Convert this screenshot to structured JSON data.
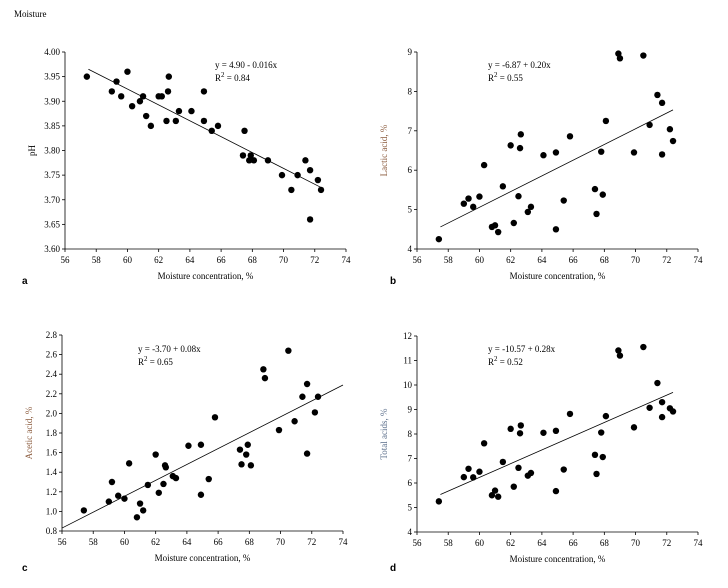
{
  "header": {
    "label": "Moisture"
  },
  "chart_data": [
    {
      "panel": "a",
      "type": "scatter",
      "xlabel": "Moisture concentration, %",
      "ylabel": "pH",
      "ylabel_color": "#000000",
      "xlim": [
        56,
        74
      ],
      "ylim": [
        3.6,
        4.0
      ],
      "xticks": [
        56,
        58,
        60,
        62,
        64,
        66,
        68,
        70,
        72,
        74
      ],
      "yticks": [
        "3.60",
        "3.65",
        "3.70",
        "3.75",
        "3.80",
        "3.85",
        "3.90",
        "3.95",
        "4.00"
      ],
      "equation": "y = 4.90 - 0.016x",
      "r2_prefix": "R",
      "r2_sup": "2",
      "r2_value": " = 0.84",
      "trendline": {
        "x": [
          57.5,
          72.4
        ],
        "y": [
          3.965,
          3.725
        ]
      },
      "points": [
        [
          57.4,
          3.95
        ],
        [
          59.0,
          3.92
        ],
        [
          59.3,
          3.94
        ],
        [
          59.6,
          3.91
        ],
        [
          60.0,
          3.96
        ],
        [
          60.3,
          3.89
        ],
        [
          60.8,
          3.9
        ],
        [
          61.0,
          3.91
        ],
        [
          61.2,
          3.87
        ],
        [
          61.5,
          3.85
        ],
        [
          62.0,
          3.91
        ],
        [
          62.2,
          3.91
        ],
        [
          62.5,
          3.86
        ],
        [
          62.6,
          3.92
        ],
        [
          62.65,
          3.95
        ],
        [
          63.1,
          3.86
        ],
        [
          63.3,
          3.88
        ],
        [
          64.1,
          3.88
        ],
        [
          64.9,
          3.86
        ],
        [
          64.9,
          3.92
        ],
        [
          65.4,
          3.84
        ],
        [
          65.8,
          3.85
        ],
        [
          67.4,
          3.79
        ],
        [
          67.5,
          3.84
        ],
        [
          67.8,
          3.78
        ],
        [
          67.9,
          3.79
        ],
        [
          68.1,
          3.78
        ],
        [
          69.0,
          3.78
        ],
        [
          69.9,
          3.75
        ],
        [
          70.5,
          3.72
        ],
        [
          70.9,
          3.75
        ],
        [
          71.4,
          3.78
        ],
        [
          71.7,
          3.76
        ],
        [
          71.7,
          3.66
        ],
        [
          72.2,
          3.74
        ],
        [
          72.4,
          3.72
        ]
      ]
    },
    {
      "panel": "b",
      "type": "scatter",
      "xlabel": "Moisture concentration, %",
      "ylabel": "Lactic acid, %",
      "ylabel_color": "#8a5a3c",
      "xlim": [
        56,
        74
      ],
      "ylim": [
        4,
        9
      ],
      "xticks": [
        56,
        58,
        60,
        62,
        64,
        66,
        68,
        70,
        72,
        74
      ],
      "yticks": [
        "4",
        "5",
        "6",
        "7",
        "8",
        "9"
      ],
      "equation": "y = -6.87 + 0.20x",
      "r2_prefix": "R",
      "r2_sup": "2",
      "r2_value": " = 0.55",
      "trendline": {
        "x": [
          57.5,
          72.4
        ],
        "y": [
          4.56,
          7.53
        ]
      },
      "points": [
        [
          57.4,
          4.25
        ],
        [
          59.0,
          5.15
        ],
        [
          59.3,
          5.28
        ],
        [
          59.6,
          5.07
        ],
        [
          60.0,
          5.33
        ],
        [
          60.3,
          6.13
        ],
        [
          60.8,
          4.56
        ],
        [
          61.0,
          4.6
        ],
        [
          61.2,
          4.43
        ],
        [
          61.5,
          5.59
        ],
        [
          62.0,
          6.63
        ],
        [
          62.2,
          4.66
        ],
        [
          62.5,
          5.34
        ],
        [
          62.6,
          6.56
        ],
        [
          62.65,
          6.91
        ],
        [
          63.1,
          4.94
        ],
        [
          63.3,
          5.07
        ],
        [
          64.1,
          6.38
        ],
        [
          64.9,
          6.45
        ],
        [
          64.9,
          4.5
        ],
        [
          65.4,
          5.23
        ],
        [
          65.8,
          6.86
        ],
        [
          67.4,
          5.52
        ],
        [
          67.5,
          4.89
        ],
        [
          67.8,
          6.47
        ],
        [
          67.9,
          5.38
        ],
        [
          68.1,
          7.25
        ],
        [
          68.9,
          8.96
        ],
        [
          69.0,
          8.84
        ],
        [
          69.9,
          6.45
        ],
        [
          70.5,
          8.91
        ],
        [
          70.9,
          7.15
        ],
        [
          71.4,
          7.91
        ],
        [
          71.7,
          7.71
        ],
        [
          71.7,
          6.4
        ],
        [
          72.2,
          7.04
        ],
        [
          72.4,
          6.74
        ]
      ]
    },
    {
      "panel": "c",
      "type": "scatter",
      "xlabel": "Moisture concentration, %",
      "ylabel": "Acetic acid, %",
      "ylabel_color": "#8a5a3c",
      "xlim": [
        56,
        74
      ],
      "ylim": [
        0.8,
        2.8
      ],
      "xticks": [
        56,
        58,
        60,
        62,
        64,
        66,
        68,
        70,
        72,
        74
      ],
      "yticks": [
        "0.8",
        "1.0",
        "1.2",
        "1.4",
        "1.6",
        "1.8",
        "2.0",
        "2.2",
        "2.4",
        "2.6",
        "2.8"
      ],
      "equation": "y = -3.70 + 0.08x",
      "r2_prefix": "R",
      "r2_sup": "2",
      "r2_value": " = 0.65",
      "trendline": {
        "x": [
          56,
          74
        ],
        "y": [
          0.83,
          2.29
        ]
      },
      "points": [
        [
          57.4,
          1.01
        ],
        [
          59.0,
          1.1
        ],
        [
          59.2,
          1.3
        ],
        [
          59.6,
          1.16
        ],
        [
          60.0,
          1.13
        ],
        [
          60.3,
          1.49
        ],
        [
          60.8,
          0.94
        ],
        [
          61.0,
          1.08
        ],
        [
          61.2,
          1.01
        ],
        [
          61.5,
          1.27
        ],
        [
          62.0,
          1.58
        ],
        [
          62.2,
          1.19
        ],
        [
          62.5,
          1.28
        ],
        [
          62.6,
          1.47
        ],
        [
          62.65,
          1.45
        ],
        [
          63.1,
          1.36
        ],
        [
          63.3,
          1.34
        ],
        [
          64.1,
          1.67
        ],
        [
          64.9,
          1.68
        ],
        [
          64.9,
          1.17
        ],
        [
          65.4,
          1.33
        ],
        [
          65.8,
          1.96
        ],
        [
          67.4,
          1.63
        ],
        [
          67.5,
          1.48
        ],
        [
          67.8,
          1.58
        ],
        [
          67.9,
          1.68
        ],
        [
          68.1,
          1.47
        ],
        [
          68.9,
          2.45
        ],
        [
          69.0,
          2.36
        ],
        [
          69.9,
          1.83
        ],
        [
          70.5,
          2.64
        ],
        [
          70.9,
          1.92
        ],
        [
          71.4,
          2.17
        ],
        [
          71.7,
          2.3
        ],
        [
          71.7,
          1.59
        ],
        [
          72.2,
          2.01
        ],
        [
          72.4,
          2.17
        ]
      ]
    },
    {
      "panel": "d",
      "type": "scatter",
      "xlabel": "Moisture concentration, %",
      "ylabel": "Total acids, %",
      "ylabel_color": "#5a6e8a",
      "xlim": [
        56,
        74
      ],
      "ylim": [
        4,
        12
      ],
      "xticks": [
        56,
        58,
        60,
        62,
        64,
        66,
        68,
        70,
        72,
        74
      ],
      "yticks": [
        "4",
        "5",
        "6",
        "7",
        "8",
        "9",
        "10",
        "11",
        "12"
      ],
      "equation": "y = -10.57 + 0.28x",
      "r2_prefix": "R",
      "r2_sup": "2",
      "r2_value": " = 0.52",
      "trendline": {
        "x": [
          57.5,
          72.4
        ],
        "y": [
          5.53,
          9.7
        ]
      },
      "points": [
        [
          57.4,
          5.25
        ],
        [
          59.0,
          6.24
        ],
        [
          59.3,
          6.58
        ],
        [
          59.6,
          6.23
        ],
        [
          60.0,
          6.46
        ],
        [
          60.3,
          7.62
        ],
        [
          60.8,
          5.5
        ],
        [
          61.0,
          5.69
        ],
        [
          61.2,
          5.44
        ],
        [
          61.5,
          6.86
        ],
        [
          62.0,
          8.21
        ],
        [
          62.2,
          5.85
        ],
        [
          62.5,
          6.62
        ],
        [
          62.6,
          8.03
        ],
        [
          62.65,
          8.35
        ],
        [
          63.1,
          6.3
        ],
        [
          63.3,
          6.41
        ],
        [
          64.1,
          8.05
        ],
        [
          64.9,
          8.13
        ],
        [
          64.9,
          5.67
        ],
        [
          65.4,
          6.55
        ],
        [
          65.8,
          8.82
        ],
        [
          67.4,
          7.15
        ],
        [
          67.5,
          6.37
        ],
        [
          67.8,
          8.06
        ],
        [
          67.9,
          7.06
        ],
        [
          68.1,
          8.73
        ],
        [
          68.9,
          11.41
        ],
        [
          69.0,
          11.2
        ],
        [
          69.9,
          8.27
        ],
        [
          70.5,
          11.55
        ],
        [
          70.9,
          9.07
        ],
        [
          71.4,
          10.08
        ],
        [
          71.7,
          9.3
        ],
        [
          71.7,
          8.69
        ],
        [
          72.2,
          9.05
        ],
        [
          72.4,
          8.92
        ]
      ]
    }
  ]
}
